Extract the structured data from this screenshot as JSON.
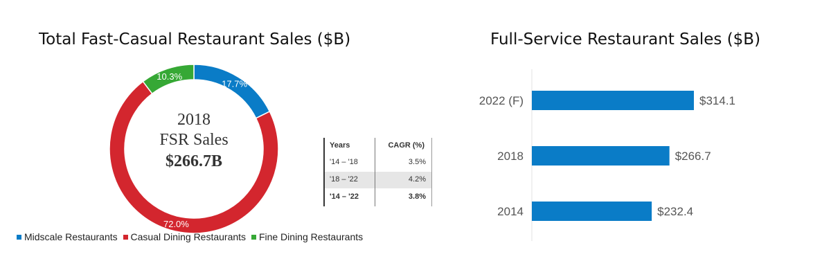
{
  "left_title": "Total Fast-Casual Restaurant Sales ($B)",
  "right_title": "Full-Service Restaurant Sales ($B)",
  "donut_center": {
    "year": "2018",
    "label": "FSR Sales",
    "value": "$266.7B"
  },
  "cagr_table": {
    "headers": [
      "Years",
      "CAGR (%)"
    ],
    "rows": [
      {
        "years": "'14 – '18",
        "cagr": "3.5%"
      },
      {
        "years": "'18 – '22",
        "cagr": "4.2%"
      },
      {
        "years": "'14 – '22",
        "cagr": "3.8%"
      }
    ]
  },
  "chart_data": [
    {
      "type": "pie",
      "title": "Total Fast-Casual Restaurant Sales ($B)",
      "labels": [
        "Midscale Restaurants",
        "Casual Dining Restaurants",
        "Fine Dining Restaurants"
      ],
      "values": [
        17.7,
        72.0,
        10.3
      ],
      "value_labels": [
        "17.7%",
        "72.0%",
        "10.3%"
      ],
      "colors": [
        "#0a7cc7",
        "#d3262e",
        "#36a835"
      ],
      "legend_position": "bottom"
    },
    {
      "type": "bar",
      "orientation": "horizontal",
      "title": "Full-Service Restaurant Sales ($B)",
      "categories": [
        "2022 (F)",
        "2018",
        "2014"
      ],
      "values": [
        314.1,
        266.7,
        232.4
      ],
      "value_labels": [
        "$314.1",
        "$266.7",
        "$232.4"
      ],
      "color": "#0a7cc7",
      "xlim": [
        0,
        314.1
      ]
    }
  ]
}
